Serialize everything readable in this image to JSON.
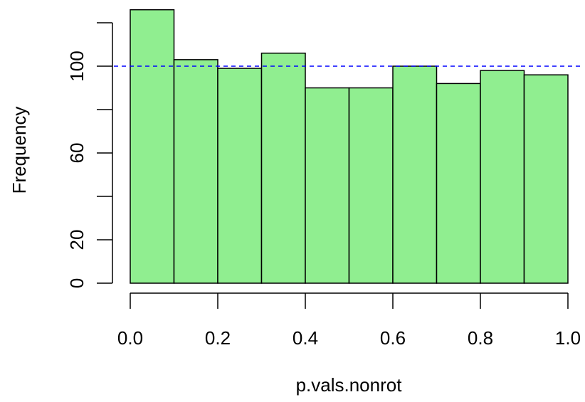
{
  "chart_data": {
    "type": "bar",
    "subtype": "histogram",
    "title": "",
    "xlabel": "p.vals.nonrot",
    "ylabel": "Frequency",
    "bin_edges": [
      0.0,
      0.1,
      0.2,
      0.3,
      0.4,
      0.5,
      0.6,
      0.7,
      0.8,
      0.9,
      1.0
    ],
    "values": [
      126,
      103,
      99,
      106,
      90,
      90,
      100,
      92,
      98,
      96
    ],
    "xlim": [
      0,
      1
    ],
    "ylim": [
      0,
      120
    ],
    "xticks": [
      0.0,
      0.2,
      0.4,
      0.6,
      0.8,
      1.0
    ],
    "xtick_labels": [
      "0.0",
      "0.2",
      "0.4",
      "0.6",
      "0.8",
      "1.0"
    ],
    "yticks": [
      0,
      20,
      40,
      60,
      80,
      100,
      120
    ],
    "ytick_labels": [
      "0",
      "20",
      "",
      "60",
      "",
      "100",
      ""
    ],
    "reference_line": {
      "y": 100,
      "style": "dashed",
      "color": "#0000ff"
    },
    "bar_fill": "#90ee90",
    "bar_stroke": "#000000",
    "grid": false,
    "legend": "none"
  }
}
